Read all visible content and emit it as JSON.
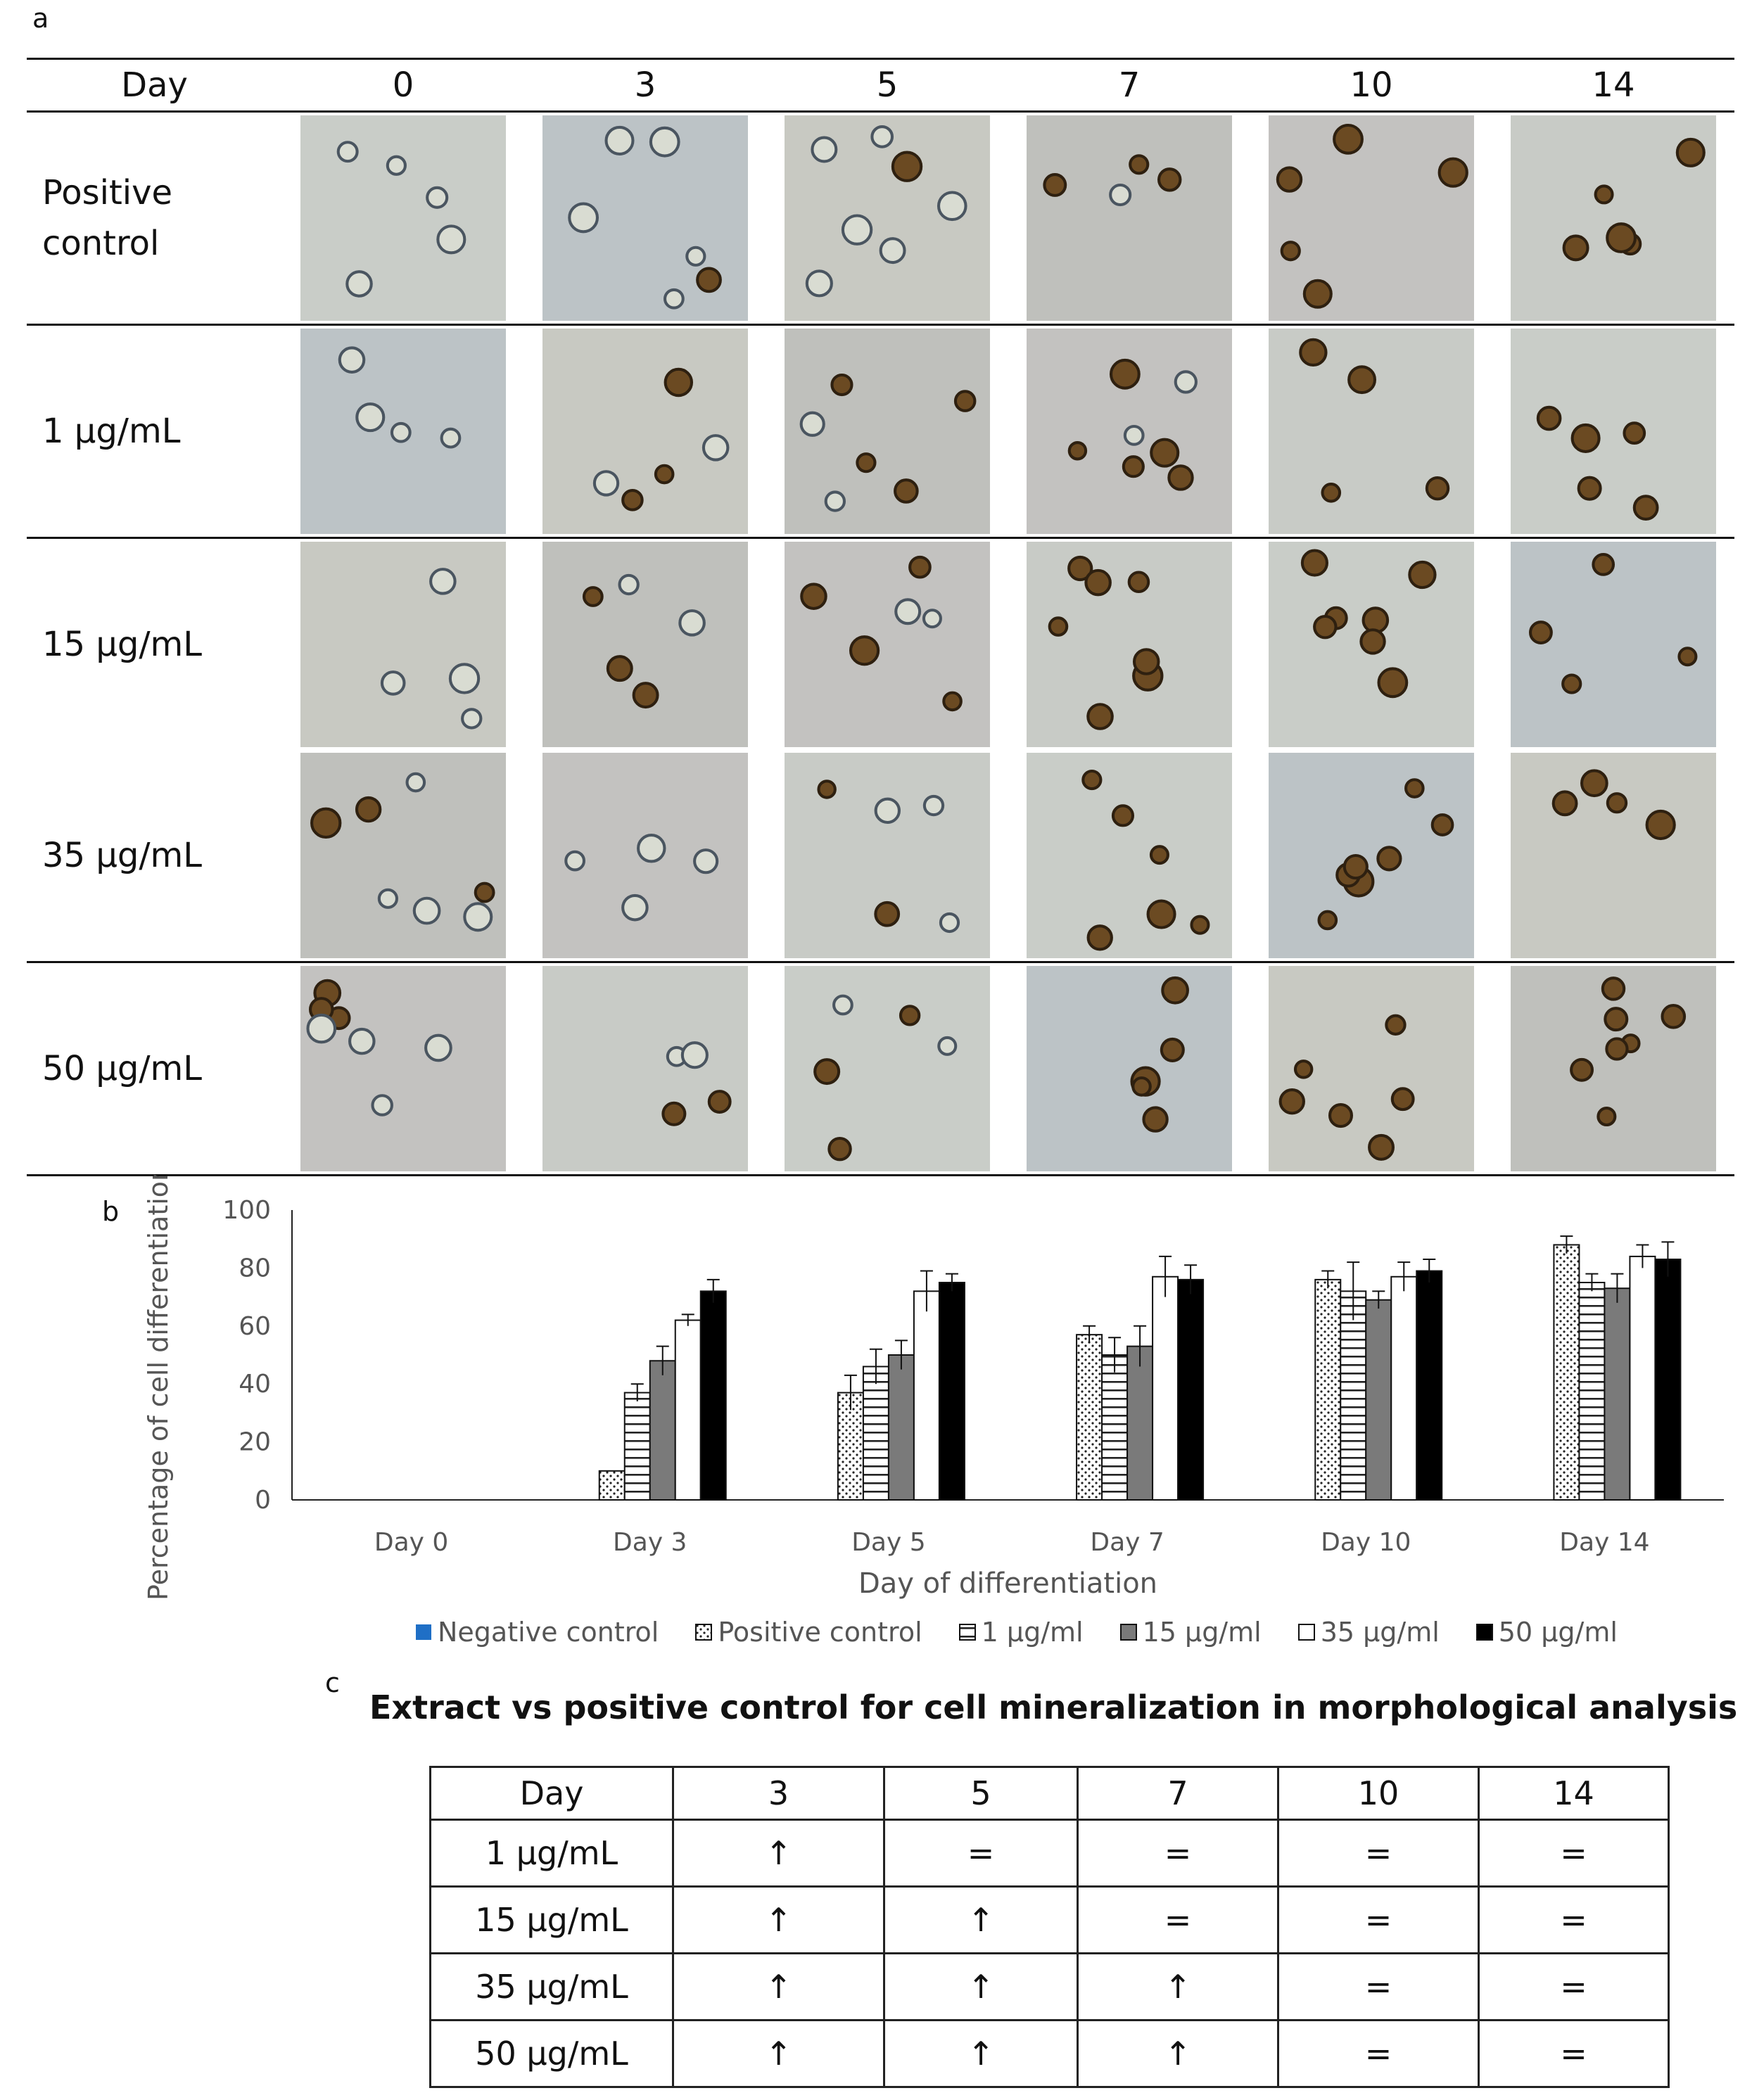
{
  "panel_letters": {
    "a": "a",
    "b": "b",
    "c": "c"
  },
  "panel_a": {
    "header_label": "Day",
    "days": [
      "0",
      "3",
      "5",
      "7",
      "10",
      "14"
    ],
    "rows": [
      {
        "label": "Positive control",
        "label_lines": [
          "Positive",
          "control"
        ]
      },
      {
        "label": "1 µg/mL",
        "label_lines": [
          "1 µg/mL"
        ]
      },
      {
        "label": "15 µg/mL",
        "label_lines": [
          "15 µg/mL"
        ]
      },
      {
        "label": "35 µg/mL",
        "label_lines": [
          "35 µg/mL"
        ]
      },
      {
        "label": "50 µg/mL",
        "label_lines": [
          "50 µg/mL"
        ]
      }
    ]
  },
  "chart_data": {
    "type": "bar",
    "title": "",
    "xlabel": "Day of differentiation",
    "ylabel": "Percentage of cell differentiation (%)",
    "ylim": [
      0,
      100
    ],
    "yticks": [
      0,
      20,
      40,
      60,
      80,
      100
    ],
    "categories": [
      "Day 0",
      "Day 3",
      "Day 5",
      "Day 7",
      "Day 10",
      "Day 14"
    ],
    "legend_position": "bottom",
    "series": [
      {
        "name": "Negative control",
        "pattern": "solid-blue",
        "color": "#1f6fc6",
        "values": [
          0,
          0,
          0,
          0,
          0,
          0
        ],
        "errors": [
          0,
          0,
          0,
          0,
          0,
          0
        ]
      },
      {
        "name": "Positive control",
        "pattern": "dots",
        "values": [
          0,
          10,
          37,
          57,
          76,
          88
        ],
        "errors": [
          0,
          0,
          6,
          3,
          3,
          3
        ]
      },
      {
        "name": "1 µg/ml",
        "pattern": "hlines",
        "values": [
          0,
          37,
          46,
          50,
          72,
          75
        ],
        "errors": [
          0,
          3,
          6,
          6,
          10,
          3
        ]
      },
      {
        "name": "15 µg/ml",
        "pattern": "solid-gray",
        "color": "#7a7a7a",
        "values": [
          0,
          48,
          50,
          53,
          69,
          73
        ],
        "errors": [
          0,
          5,
          5,
          7,
          3,
          5
        ]
      },
      {
        "name": "35 µg/ml",
        "pattern": "white",
        "color": "#ffffff",
        "values": [
          0,
          62,
          72,
          77,
          77,
          84
        ],
        "errors": [
          0,
          2,
          7,
          7,
          5,
          4
        ]
      },
      {
        "name": "50 µg/ml",
        "pattern": "solid-black",
        "color": "#000000",
        "values": [
          0,
          72,
          75,
          76,
          79,
          83
        ],
        "errors": [
          0,
          4,
          3,
          5,
          4,
          6
        ]
      }
    ]
  },
  "panel_c": {
    "title": "Extract vs positive control for cell mineralization in morphological analysis",
    "header_label": "Day",
    "days": [
      "3",
      "5",
      "7",
      "10",
      "14"
    ],
    "rows": [
      {
        "label": "1 µg/mL",
        "cells": [
          "↑",
          "=",
          "=",
          "=",
          "="
        ]
      },
      {
        "label": "15 µg/mL",
        "cells": [
          "↑",
          "↑",
          "=",
          "=",
          "="
        ]
      },
      {
        "label": "35 µg/mL",
        "cells": [
          "↑",
          "↑",
          "↑",
          "=",
          "="
        ]
      },
      {
        "label": "50 µg/mL",
        "cells": [
          "↑",
          "↑",
          "↑",
          "=",
          "="
        ]
      }
    ]
  }
}
